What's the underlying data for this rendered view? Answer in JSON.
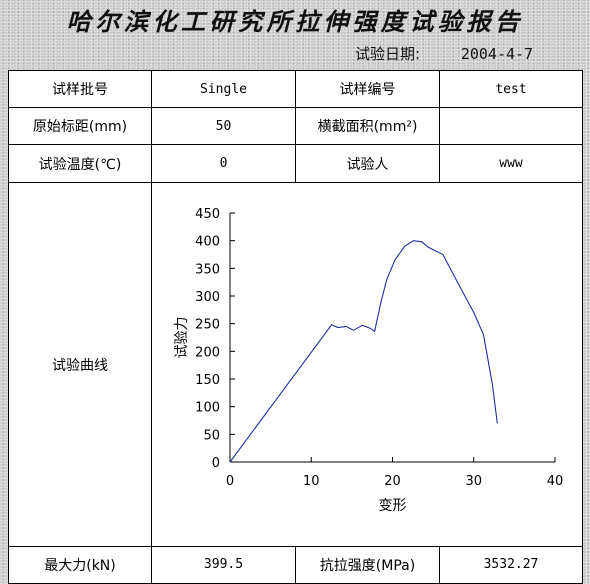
{
  "report": {
    "title": "哈尔滨化工研究所拉伸强度试验报告",
    "date_label": "试验日期:",
    "date_value": "2004-4-7"
  },
  "rows": [
    {
      "label1": "试样批号",
      "value1": "Single",
      "label2": "试样编号",
      "value2": "test"
    },
    {
      "label1": "原始标距(mm)",
      "value1": "50",
      "label2": "横截面积(mm²)",
      "value2": ""
    },
    {
      "label1": "试验温度(℃)",
      "value1": "0",
      "label2": "试验人",
      "value2": "www"
    }
  ],
  "curve_label": "试验曲线",
  "result_row": {
    "label1": "最大力(kN)",
    "value1": "399.5",
    "label2": "抗拉强度(MPa)",
    "value2": "3532.27"
  },
  "chart_data": {
    "type": "line",
    "xlabel": "变形",
    "ylabel": "试验力",
    "xlim": [
      0,
      40
    ],
    "ylim": [
      0,
      450
    ],
    "x_ticks": [
      0,
      10,
      20,
      30,
      40
    ],
    "y_ticks": [
      0,
      50,
      100,
      150,
      200,
      250,
      300,
      350,
      400,
      450
    ],
    "grid": false,
    "series": [
      {
        "color": "#1f2fa0",
        "x": [
          0,
          12.5,
          13.3,
          14.3,
          15.2,
          16.3,
          17.2,
          17.8,
          18.6,
          19.3,
          20.3,
          21.5,
          22.6,
          23.6,
          24.4,
          26.2,
          28,
          30,
          31.2,
          32.3,
          32.9
        ],
        "y": [
          0,
          248,
          243,
          245,
          238,
          247,
          242,
          236,
          290,
          330,
          365,
          390,
          400,
          398,
          388,
          375,
          325,
          270,
          230,
          140,
          70
        ]
      }
    ]
  }
}
